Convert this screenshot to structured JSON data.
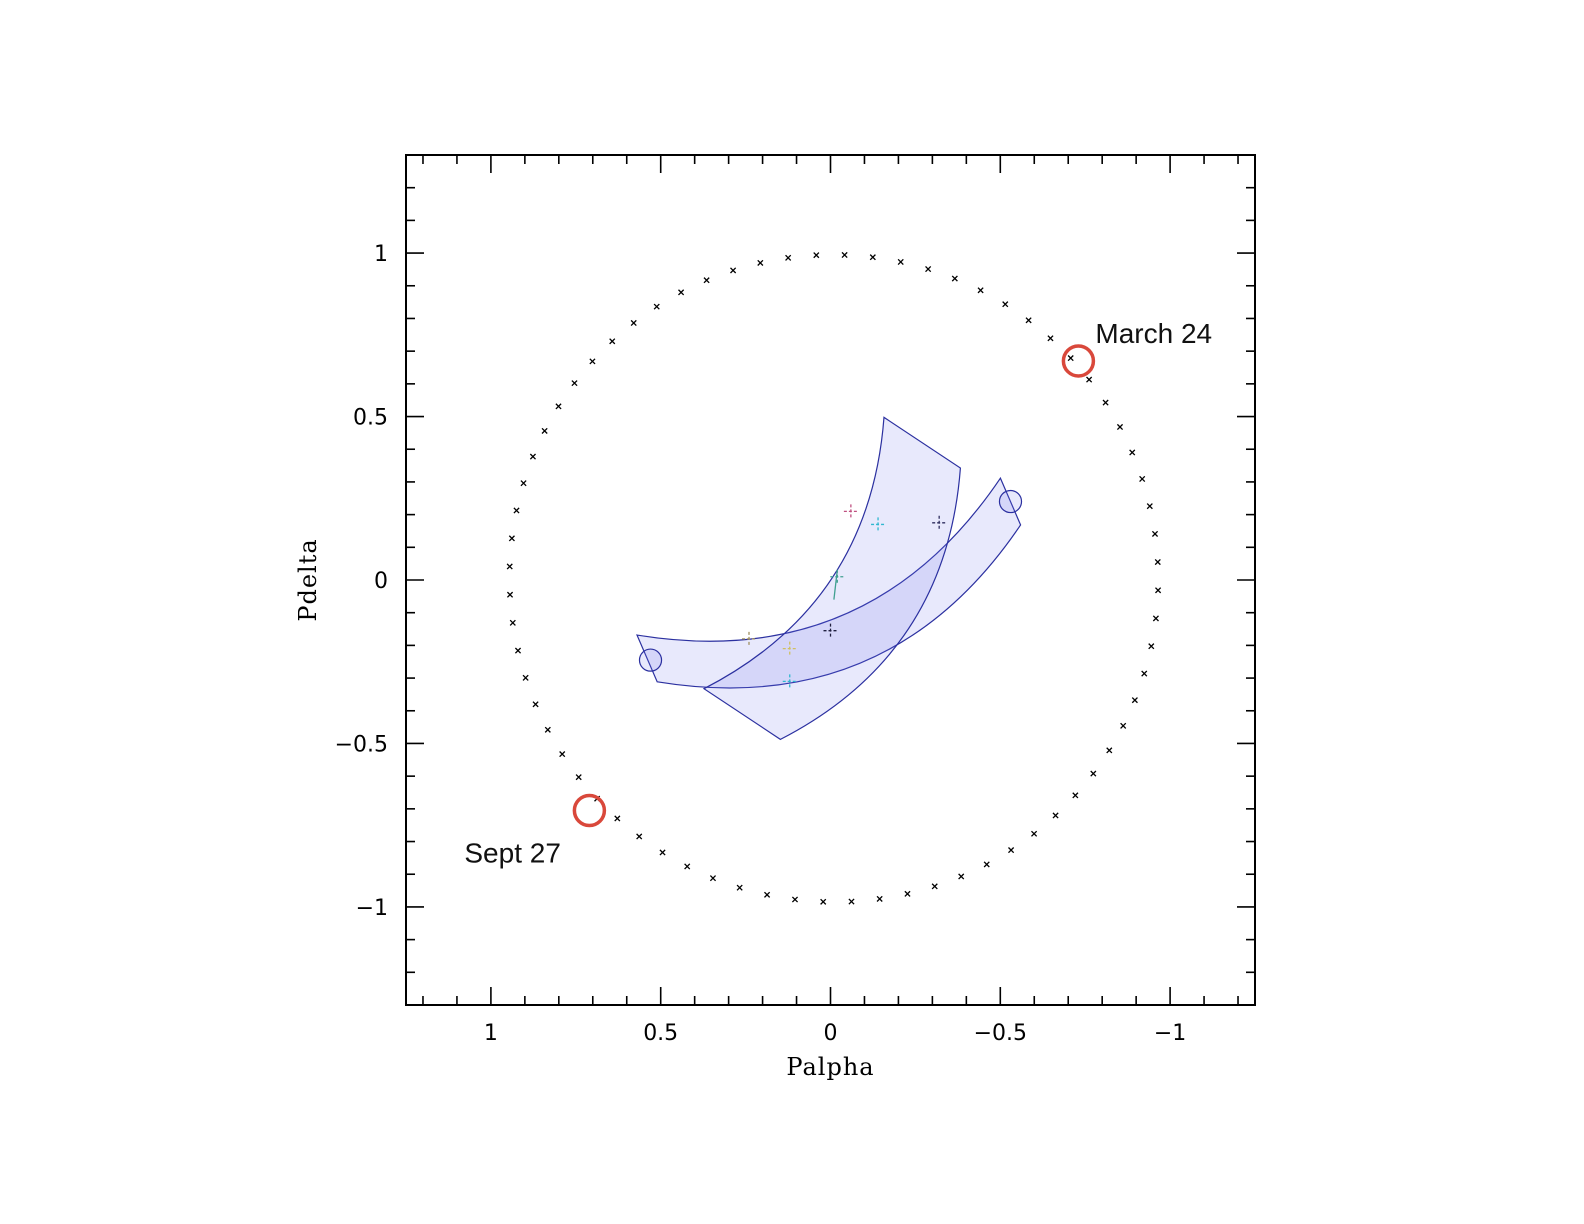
{
  "chart_data": {
    "type": "scatter",
    "xlabel": "Palpha",
    "ylabel": "Pdelta",
    "xlim": [
      1.25,
      -1.25
    ],
    "ylim": [
      -1.3,
      1.3
    ],
    "x_reversed": true,
    "xticks": [
      {
        "value": 1,
        "label": "1"
      },
      {
        "value": 0.5,
        "label": "0.5"
      },
      {
        "value": 0,
        "label": "0"
      },
      {
        "value": -0.5,
        "label": "−0.5"
      },
      {
        "value": -1,
        "label": "−1"
      }
    ],
    "yticks": [
      {
        "value": 1,
        "label": "1"
      },
      {
        "value": 0.5,
        "label": "0.5"
      },
      {
        "value": 0,
        "label": "0"
      },
      {
        "value": -0.5,
        "label": "−0.5"
      },
      {
        "value": -1,
        "label": "−1"
      }
    ],
    "minor_tick_step": 0.1,
    "grid": false,
    "parallax_ellipse": {
      "center": [
        -0.01,
        0.005
      ],
      "semi_major": 0.99,
      "semi_minor": 0.955,
      "tilt_deg": -3,
      "n_points": 72,
      "marker": "x"
    },
    "constraint_bands": [
      {
        "name": "band-a",
        "from": [
          0.54,
          -0.24
        ],
        "to": [
          -0.53,
          0.24
        ],
        "half_width": 0.075,
        "curvature": 0.32
      },
      {
        "name": "band-b",
        "from": [
          0.26,
          -0.41
        ],
        "to": [
          -0.27,
          0.42
        ],
        "half_width": 0.135,
        "curvature": 0.28
      }
    ],
    "end_circles": [
      {
        "x": 0.53,
        "y": -0.245,
        "r": 0.05
      },
      {
        "x": -0.53,
        "y": 0.24,
        "r": 0.05
      }
    ],
    "measurement_points": [
      {
        "x": -0.06,
        "y": 0.21,
        "color": "#c05080"
      },
      {
        "x": -0.14,
        "y": 0.17,
        "color": "#30b8d0"
      },
      {
        "x": -0.32,
        "y": 0.175,
        "color": "#303060"
      },
      {
        "x": -0.02,
        "y": 0.01,
        "color": "#40a090"
      },
      {
        "x": 0.0,
        "y": -0.155,
        "color": "#202040"
      },
      {
        "x": 0.24,
        "y": -0.18,
        "color": "#a09060"
      },
      {
        "x": 0.12,
        "y": -0.21,
        "color": "#d0c060"
      },
      {
        "x": 0.12,
        "y": -0.31,
        "color": "#30b8d0"
      }
    ],
    "annotations": [
      {
        "text": "March 24",
        "x": -0.73,
        "y": 0.67
      },
      {
        "text": "Sept 27",
        "x": 0.71,
        "y": -0.705
      }
    ]
  }
}
